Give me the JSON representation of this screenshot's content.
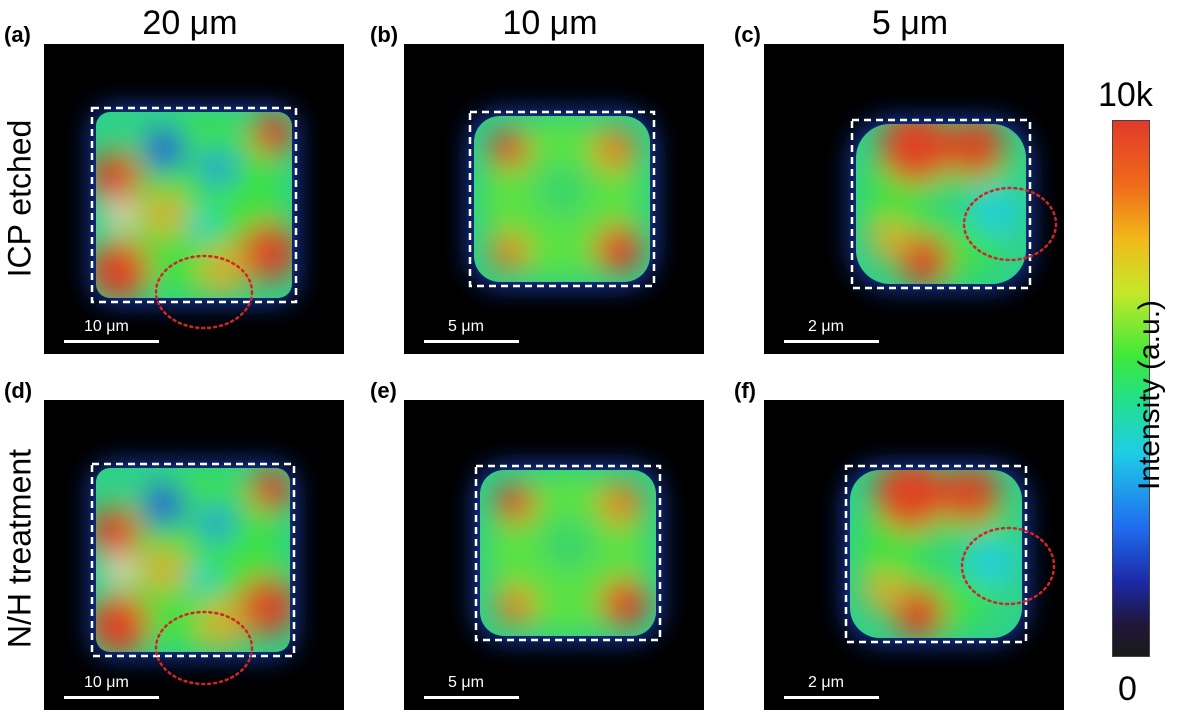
{
  "columns": [
    "20 μm",
    "10 μm",
    "5 μm"
  ],
  "rows": [
    "ICP etched",
    "N/H treatment"
  ],
  "panels": [
    {
      "tag": "(a)",
      "scale": "10 μm",
      "pattern": "full",
      "defect": true
    },
    {
      "tag": "(b)",
      "scale": "5 μm",
      "pattern": "corners",
      "defect": false
    },
    {
      "tag": "(c)",
      "scale": "2 μm",
      "pattern": "tops",
      "defect": true
    },
    {
      "tag": "(d)",
      "scale": "10 μm",
      "pattern": "full",
      "defect": true
    },
    {
      "tag": "(e)",
      "scale": "5 μm",
      "pattern": "corners",
      "defect": false
    },
    {
      "tag": "(f)",
      "scale": "2 μm",
      "pattern": "tops",
      "defect": true
    }
  ],
  "colorbar": {
    "max": "10k",
    "min": "0",
    "label": "Intensity (a.u.)"
  },
  "colors": {
    "background": "#000000",
    "box": "#ffffff",
    "defect": "#d42424",
    "low": "#1f4fe0",
    "mid": "#3fe33a",
    "high": "#e8391f"
  }
}
